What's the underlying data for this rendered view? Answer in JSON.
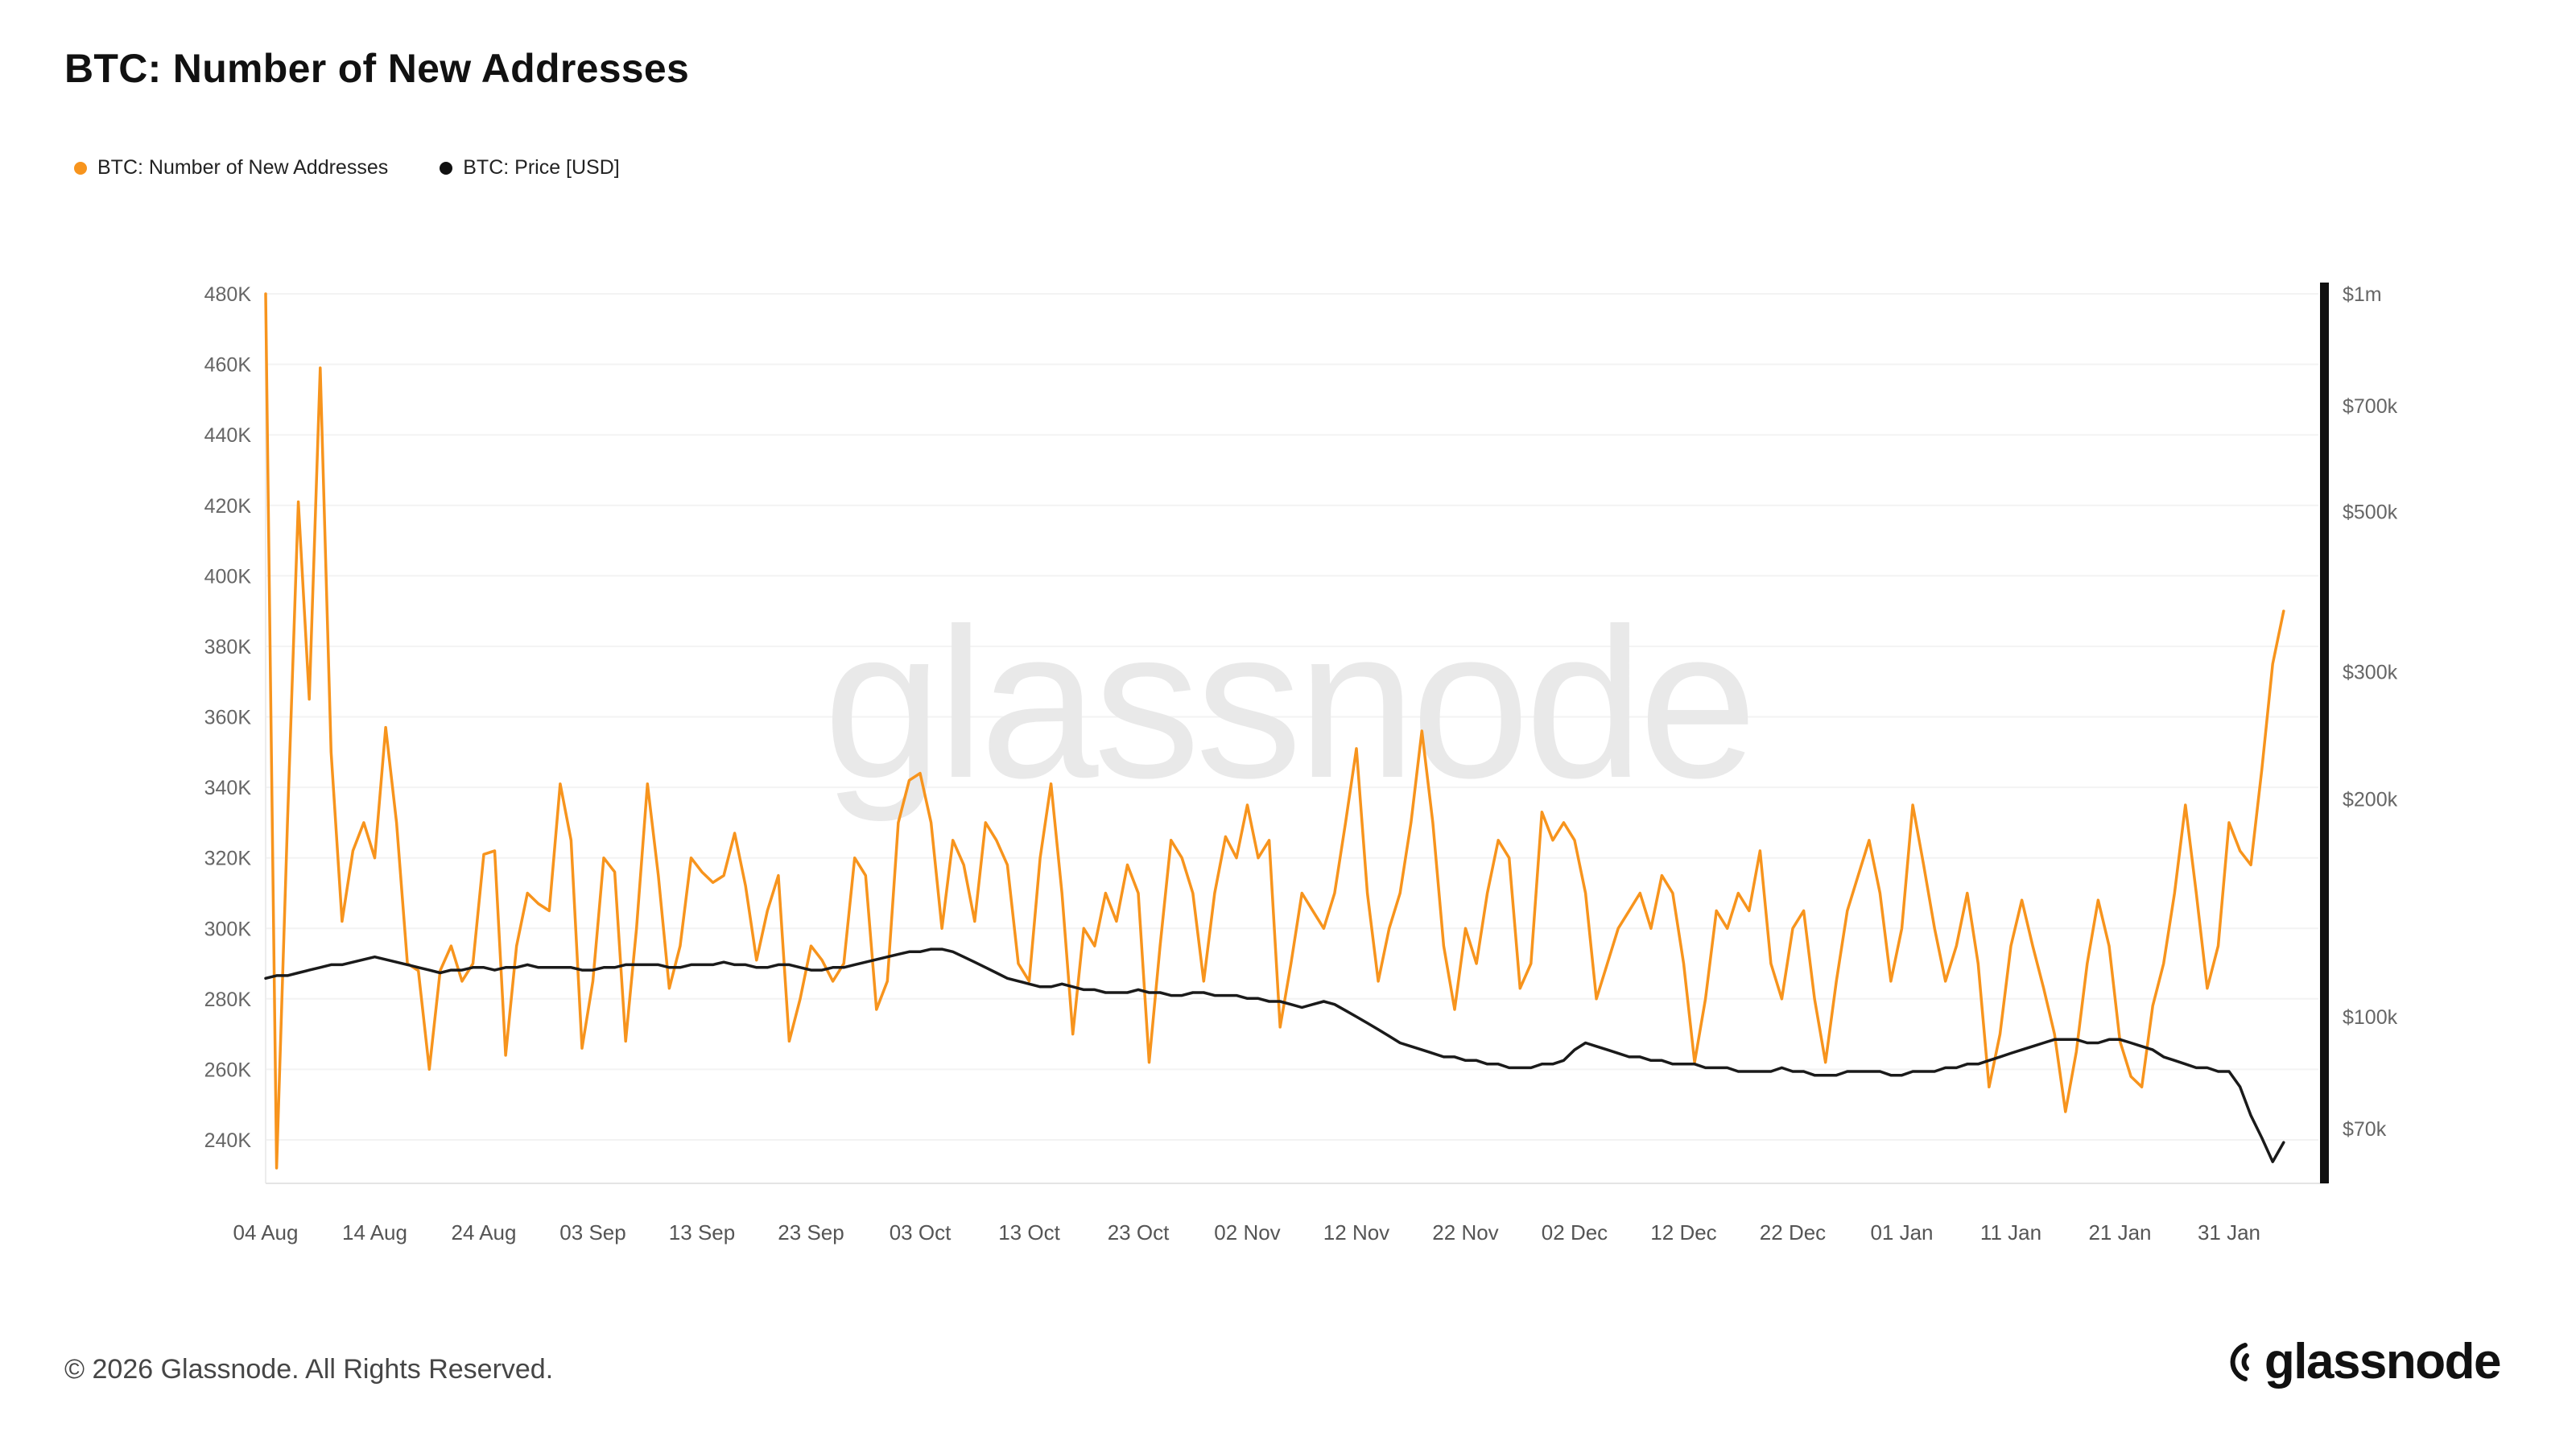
{
  "page": {
    "title": "BTC: Number of New Addresses",
    "watermark": "glassnode",
    "footer_copyright": "© 2026 Glassnode. All Rights Reserved.",
    "footer_logo": "glassnode"
  },
  "legend": [
    {
      "label": "BTC: Number of New Addresses",
      "color": "#f7941d"
    },
    {
      "label": "BTC: Price [USD]",
      "color": "#111111"
    }
  ],
  "chart_data": {
    "type": "line",
    "title": "BTC: Number of New Addresses",
    "grid": true,
    "legend_position": "top-left",
    "x_start_label": "04 Aug",
    "x_tick_labels": [
      "04 Aug",
      "14 Aug",
      "24 Aug",
      "03 Sep",
      "13 Sep",
      "23 Sep",
      "03 Oct",
      "13 Oct",
      "23 Oct",
      "02 Nov",
      "12 Nov",
      "22 Nov",
      "02 Dec",
      "12 Dec",
      "22 Dec",
      "01 Jan",
      "11 Jan",
      "21 Jan",
      "31 Jan"
    ],
    "x_tick_day_offsets": [
      0,
      10,
      20,
      30,
      40,
      50,
      60,
      70,
      80,
      90,
      100,
      110,
      120,
      130,
      140,
      150,
      160,
      170,
      180
    ],
    "left_axis": {
      "title": "New Addresses",
      "tick_labels": [
        "480K",
        "460K",
        "440K",
        "420K",
        "400K",
        "380K",
        "360K",
        "340K",
        "320K",
        "300K",
        "280K",
        "260K",
        "240K"
      ],
      "tick_values_k": [
        480,
        460,
        440,
        420,
        400,
        380,
        360,
        340,
        320,
        300,
        280,
        260,
        240
      ],
      "range_k": [
        240,
        480
      ],
      "scale": "linear"
    },
    "right_axis": {
      "title": "Price USD",
      "tick_labels": [
        "$1m",
        "$700k",
        "$500k",
        "$300k",
        "$200k",
        "$100k",
        "$70k"
      ],
      "tick_values_k": [
        1000,
        700,
        500,
        300,
        200,
        100,
        70
      ],
      "scale": "log"
    },
    "series": [
      {
        "name": "BTC: Number of New Addresses",
        "color": "#f7941d",
        "axis": "left",
        "unit": "thousand addresses",
        "values": [
          480,
          232,
          330,
          421,
          365,
          459,
          350,
          302,
          322,
          330,
          320,
          357,
          330,
          290,
          288,
          260,
          288,
          295,
          285,
          290,
          321,
          322,
          264,
          295,
          310,
          307,
          305,
          341,
          325,
          266,
          285,
          320,
          316,
          268,
          300,
          341,
          315,
          283,
          295,
          320,
          316,
          313,
          315,
          327,
          312,
          291,
          305,
          315,
          268,
          280,
          295,
          291,
          285,
          290,
          320,
          315,
          277,
          285,
          330,
          342,
          344,
          330,
          300,
          325,
          318,
          302,
          330,
          325,
          318,
          290,
          285,
          320,
          341,
          310,
          270,
          300,
          295,
          310,
          302,
          318,
          310,
          262,
          295,
          325,
          320,
          310,
          285,
          310,
          326,
          320,
          335,
          320,
          325,
          272,
          290,
          310,
          305,
          300,
          310,
          330,
          351,
          310,
          285,
          300,
          310,
          330,
          356,
          330,
          295,
          277,
          300,
          290,
          310,
          325,
          320,
          283,
          290,
          333,
          325,
          330,
          325,
          310,
          280,
          290,
          300,
          305,
          310,
          300,
          315,
          310,
          290,
          262,
          280,
          305,
          300,
          310,
          305,
          322,
          290,
          280,
          300,
          305,
          280,
          262,
          285,
          305,
          315,
          325,
          310,
          285,
          300,
          335,
          318,
          300,
          285,
          295,
          310,
          290,
          255,
          270,
          295,
          308,
          295,
          283,
          270,
          248,
          265,
          290,
          308,
          295,
          268,
          258,
          255,
          278,
          290,
          310,
          335,
          310,
          283,
          295,
          330,
          322,
          318,
          345,
          375,
          390
        ]
      },
      {
        "name": "BTC: Price [USD]",
        "color": "#1a1a1a",
        "axis": "right",
        "unit": "thousand USD",
        "values": [
          113,
          114,
          114,
          115,
          116,
          117,
          118,
          118,
          119,
          120,
          121,
          120,
          119,
          118,
          117,
          116,
          115,
          116,
          116,
          117,
          117,
          116,
          117,
          117,
          118,
          117,
          117,
          117,
          117,
          116,
          116,
          117,
          117,
          118,
          118,
          118,
          118,
          117,
          117,
          118,
          118,
          118,
          119,
          118,
          118,
          117,
          117,
          118,
          118,
          117,
          116,
          116,
          117,
          117,
          118,
          119,
          120,
          121,
          122,
          123,
          123,
          124,
          124,
          123,
          121,
          119,
          117,
          115,
          113,
          112,
          111,
          110,
          110,
          111,
          110,
          109,
          109,
          108,
          108,
          108,
          109,
          108,
          108,
          107,
          107,
          108,
          108,
          107,
          107,
          107,
          106,
          106,
          105,
          105,
          104,
          103,
          104,
          105,
          104,
          102,
          100,
          98,
          96,
          94,
          92,
          91,
          90,
          89,
          88,
          88,
          87,
          87,
          86,
          86,
          85,
          85,
          85,
          86,
          86,
          87,
          90,
          92,
          91,
          90,
          89,
          88,
          88,
          87,
          87,
          86,
          86,
          86,
          85,
          85,
          85,
          84,
          84,
          84,
          84,
          85,
          84,
          84,
          83,
          83,
          83,
          84,
          84,
          84,
          84,
          83,
          83,
          84,
          84,
          84,
          85,
          85,
          86,
          86,
          87,
          88,
          89,
          90,
          91,
          92,
          93,
          93,
          93,
          92,
          92,
          93,
          93,
          92,
          91,
          90,
          88,
          87,
          86,
          85,
          85,
          84,
          84,
          80,
          73,
          68,
          63,
          67
        ]
      }
    ]
  }
}
